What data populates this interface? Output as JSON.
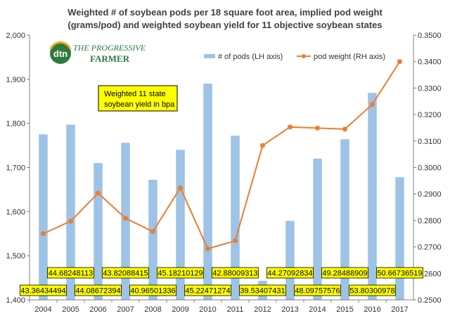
{
  "chart_data": {
    "type": "bar",
    "title": [
      "Weighted # of soybean pods per 18 square foot area, implied pod weight",
      "(grams/pod) and weighted soybean yield for 11 objective soybean states"
    ],
    "categories": [
      "2004",
      "2005",
      "2006",
      "2007",
      "2008",
      "2009",
      "2010",
      "2011",
      "2012",
      "2013",
      "2014",
      "2015",
      "2016",
      "2017"
    ],
    "series": [
      {
        "name": "# of pods (LH axis)",
        "axis": "left",
        "type": "bar",
        "color": "#9dc3e6",
        "values": [
          1775,
          1797,
          1710,
          1756,
          1672,
          1740,
          1890,
          1772,
          1443,
          1579,
          1720,
          1764,
          1869,
          1678
        ]
      },
      {
        "name": "pod weight (RH axis)",
        "axis": "right",
        "type": "line",
        "color": "#ed7d31",
        "values": [
          0.275,
          0.2797,
          0.2903,
          0.2808,
          0.2758,
          0.2923,
          0.2693,
          0.2723,
          0.3083,
          0.3153,
          0.3149,
          0.3145,
          0.3238,
          0.34
        ]
      }
    ],
    "yield_labels": [
      "43.36434494",
      "44.68248113",
      "44.08672394",
      "43.82088415",
      "40.96501336",
      "45.18210129",
      "45.22471274",
      "42.88009313",
      "39.53407431",
      "44.27092834",
      "48.09757576",
      "49.28488909",
      "53.80300978",
      "50.66736519"
    ],
    "left_axis": {
      "min": 1400,
      "max": 2000,
      "step": 100,
      "ticks": [
        "1,400",
        "1,500",
        "1,600",
        "1,700",
        "1,800",
        "1,900",
        "2,000"
      ]
    },
    "right_axis": {
      "min": 0.25,
      "max": 0.35,
      "step": 0.01,
      "ticks": [
        "0.2500",
        "0.2600",
        "0.2700",
        "0.2800",
        "0.2900",
        "0.3000",
        "0.3100",
        "0.3200",
        "0.3300",
        "0.3400",
        "0.3500"
      ]
    },
    "annotation": [
      "Weighted 11 state",
      "soybean yield in bpa"
    ],
    "legend_position": "top-right",
    "grid": false
  },
  "logo": {
    "dtn": "dtn",
    "line1": "THE PROGRESSIVE",
    "line2": "FARMER"
  },
  "colors": {
    "bar": "#9dc3e6",
    "line": "#ed7d31",
    "label_fill": "#ffff00",
    "axis": "#808080"
  }
}
